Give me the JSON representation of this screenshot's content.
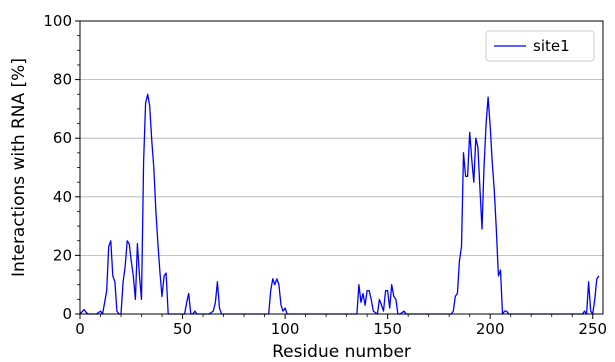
{
  "chart_data": {
    "type": "line",
    "title": "",
    "xlabel": "Residue number",
    "ylabel": "Interactions with RNA [%]",
    "xlim": [
      0,
      255
    ],
    "ylim": [
      0,
      100
    ],
    "x_ticks": [
      0,
      50,
      100,
      150,
      200,
      250
    ],
    "y_ticks": [
      0,
      20,
      40,
      60,
      80,
      100
    ],
    "grid": {
      "y_major": true,
      "x": false
    },
    "legend": {
      "position": "top-right",
      "entries": [
        "site1"
      ]
    },
    "series": [
      {
        "name": "site1",
        "color": "#0000ff",
        "points": [
          [
            0,
            0
          ],
          [
            2,
            1.5
          ],
          [
            3,
            0.5
          ],
          [
            4,
            0
          ],
          [
            8,
            0
          ],
          [
            10,
            1
          ],
          [
            11,
            0
          ],
          [
            13,
            8
          ],
          [
            14,
            23
          ],
          [
            15,
            25
          ],
          [
            16,
            13
          ],
          [
            17,
            11
          ],
          [
            18,
            1
          ],
          [
            19,
            0
          ],
          [
            20,
            0
          ],
          [
            21,
            11
          ],
          [
            22,
            16
          ],
          [
            23,
            25
          ],
          [
            24,
            24
          ],
          [
            25,
            18
          ],
          [
            26,
            13
          ],
          [
            27,
            5
          ],
          [
            28,
            24
          ],
          [
            29,
            13
          ],
          [
            30,
            5
          ],
          [
            31,
            52
          ],
          [
            32,
            72
          ],
          [
            33,
            75
          ],
          [
            34,
            71
          ],
          [
            35,
            59
          ],
          [
            36,
            50
          ],
          [
            37,
            35
          ],
          [
            38,
            24
          ],
          [
            39,
            14
          ],
          [
            40,
            6
          ],
          [
            41,
            13
          ],
          [
            42,
            14
          ],
          [
            43,
            0
          ],
          [
            51,
            0
          ],
          [
            52,
            4
          ],
          [
            53,
            7
          ],
          [
            54,
            0
          ],
          [
            55,
            0
          ],
          [
            56,
            1
          ],
          [
            57,
            0
          ],
          [
            63,
            0
          ],
          [
            65,
            1
          ],
          [
            66,
            4
          ],
          [
            67,
            11
          ],
          [
            68,
            2
          ],
          [
            69,
            0
          ],
          [
            92,
            0
          ],
          [
            93,
            8
          ],
          [
            94,
            12
          ],
          [
            95,
            10
          ],
          [
            96,
            12
          ],
          [
            97,
            10
          ],
          [
            98,
            3
          ],
          [
            99,
            1
          ],
          [
            100,
            2
          ],
          [
            101,
            0
          ],
          [
            135,
            0
          ],
          [
            136,
            10
          ],
          [
            137,
            4
          ],
          [
            138,
            7
          ],
          [
            139,
            3
          ],
          [
            140,
            8
          ],
          [
            141,
            8
          ],
          [
            142,
            5
          ],
          [
            143,
            1
          ],
          [
            145,
            0
          ],
          [
            146,
            5
          ],
          [
            147,
            3
          ],
          [
            148,
            1
          ],
          [
            149,
            8
          ],
          [
            150,
            8
          ],
          [
            151,
            2
          ],
          [
            152,
            10
          ],
          [
            153,
            6
          ],
          [
            154,
            5
          ],
          [
            155,
            0
          ],
          [
            156,
            0
          ],
          [
            158,
            1
          ],
          [
            159,
            0
          ],
          [
            181,
            0
          ],
          [
            182,
            1
          ],
          [
            183,
            6
          ],
          [
            184,
            7
          ],
          [
            185,
            18
          ],
          [
            186,
            23
          ],
          [
            187,
            55
          ],
          [
            188,
            47
          ],
          [
            189,
            47
          ],
          [
            190,
            62
          ],
          [
            191,
            53
          ],
          [
            192,
            45
          ],
          [
            193,
            60
          ],
          [
            194,
            57
          ],
          [
            195,
            43
          ],
          [
            196,
            29
          ],
          [
            197,
            50
          ],
          [
            198,
            65
          ],
          [
            199,
            74
          ],
          [
            200,
            64
          ],
          [
            201,
            52
          ],
          [
            202,
            42
          ],
          [
            203,
            29
          ],
          [
            204,
            13
          ],
          [
            205,
            15
          ],
          [
            206,
            0
          ],
          [
            207,
            1
          ],
          [
            208,
            1
          ],
          [
            209,
            0
          ],
          [
            245,
            0
          ],
          [
            246,
            1
          ],
          [
            247,
            0
          ],
          [
            248,
            11
          ],
          [
            249,
            1
          ],
          [
            250,
            0
          ],
          [
            251,
            5
          ],
          [
            252,
            12
          ],
          [
            253,
            13
          ]
        ]
      }
    ]
  }
}
